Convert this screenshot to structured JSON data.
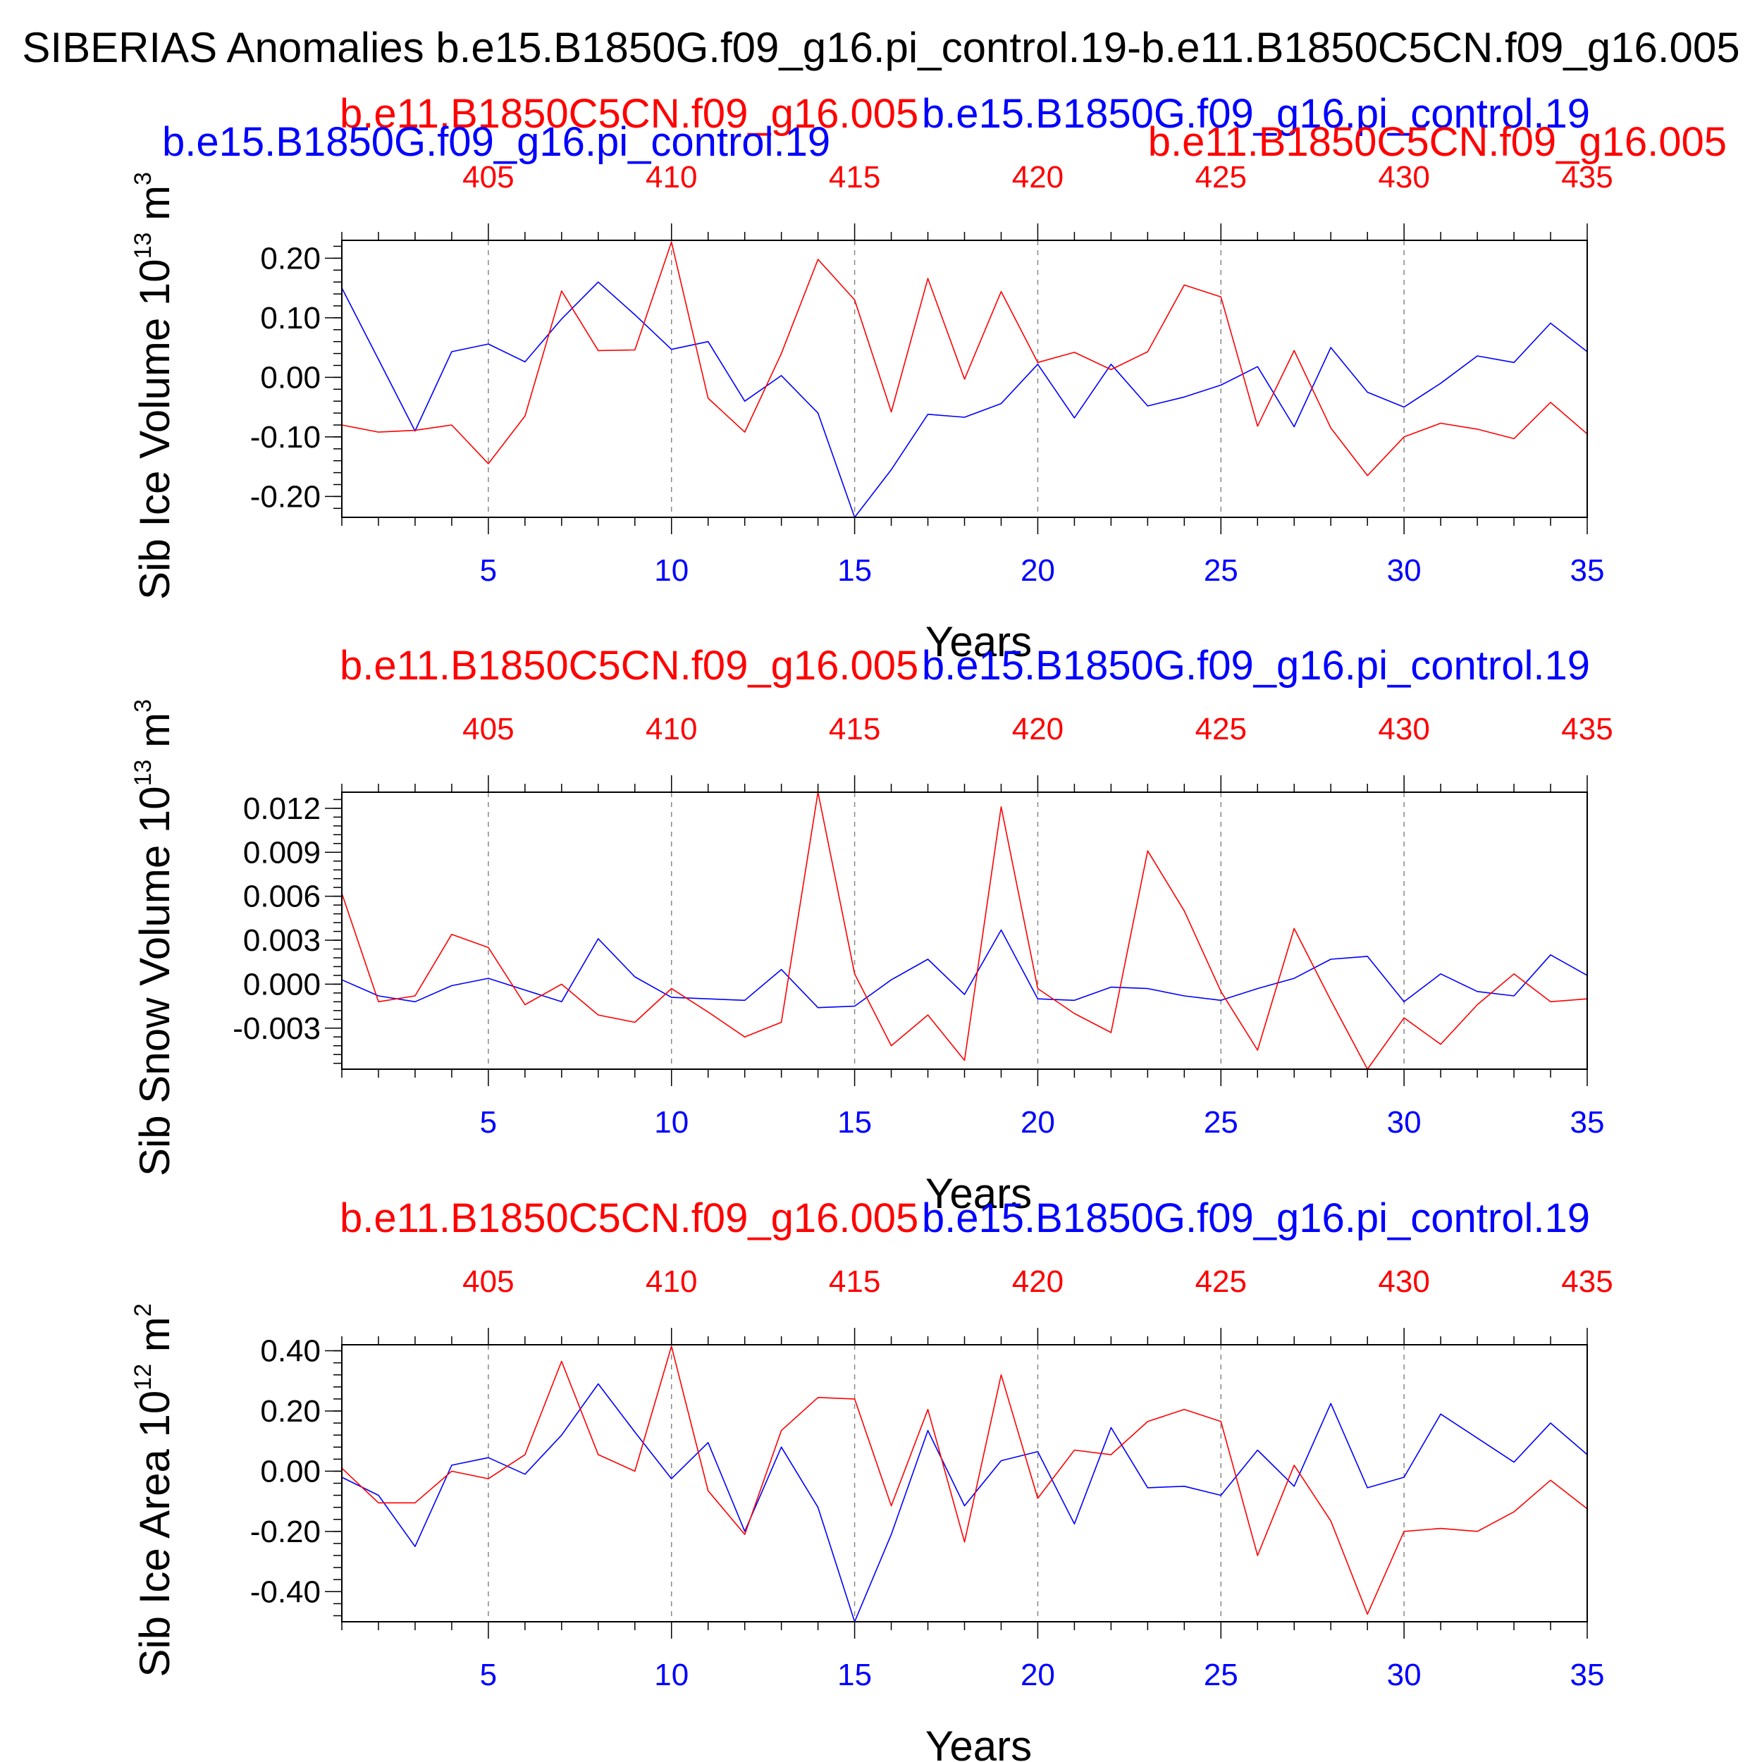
{
  "title": "SIBERIAS Anomalies b.e15.B1850G.f09_g16.pi_control.19-b.e11.B1850C5CN.f09_g16.005",
  "colors": {
    "case1": "#0000ff",
    "case2": "#ff0000",
    "axis": "#000000",
    "grid": "#888888"
  },
  "chart_data": [
    {
      "type": "line",
      "name": "Sib Ice Volume",
      "ylabel_main": "Sib Ice Volume 10",
      "ylabel_exp": "13",
      "ylabel_unit": " m",
      "ylabel_unit_exp": "3",
      "xlabel": "Years",
      "legend_case2": "b.e11.B1850C5CN.f09_g16.005",
      "legend_case1": "b.e15.B1850G.f09_g16.pi_control.19",
      "legend_extra_case1": "b.e15.B1850G.f09_g16.pi_control.19",
      "legend_extra_case2": "b.e11.B1850C5CN.f09_g16.005",
      "xlim": [
        1,
        35
      ],
      "ylim": [
        -0.235,
        0.23
      ],
      "yticks": [
        -0.2,
        -0.1,
        0.0,
        0.1,
        0.2
      ],
      "ytick_labels": [
        "-0.20",
        "-0.10",
        "0.00",
        "0.10",
        "0.20"
      ],
      "yminor_step": 0.02,
      "xticks_bottom": [
        5,
        10,
        15,
        20,
        25,
        30,
        35
      ],
      "xtick_labels_bottom": [
        "5",
        "10",
        "15",
        "20",
        "25",
        "30",
        "35"
      ],
      "xtick_labels_top": [
        "405",
        "410",
        "415",
        "420",
        "425",
        "430",
        "435"
      ],
      "x": [
        1,
        2,
        3,
        4,
        5,
        6,
        7,
        8,
        9,
        10,
        11,
        12,
        13,
        14,
        15,
        16,
        17,
        18,
        19,
        20,
        21,
        22,
        23,
        24,
        25,
        26,
        27,
        28,
        29,
        30,
        31,
        32,
        33,
        34,
        35
      ],
      "series": [
        {
          "name": "b.e15.B1850G.f09_g16.pi_control.19",
          "color": "#0000ff",
          "values": [
            0.15,
            0.03,
            -0.09,
            0.043,
            0.056,
            0.026,
            0.098,
            0.16,
            0.105,
            0.047,
            0.06,
            -0.04,
            0.003,
            -0.06,
            -0.235,
            -0.155,
            -0.062,
            -0.067,
            -0.044,
            0.022,
            -0.068,
            0.022,
            -0.048,
            -0.033,
            -0.013,
            0.018,
            -0.083,
            0.05,
            -0.025,
            -0.05,
            -0.01,
            0.036,
            0.025,
            0.091,
            0.043
          ]
        },
        {
          "name": "b.e11.B1850C5CN.f09_g16.005",
          "color": "#ff0000",
          "values": [
            -0.08,
            -0.092,
            -0.089,
            -0.08,
            -0.145,
            -0.065,
            0.145,
            0.045,
            0.046,
            0.227,
            -0.035,
            -0.092,
            0.04,
            0.198,
            0.13,
            -0.058,
            0.166,
            -0.003,
            0.144,
            0.025,
            0.042,
            0.013,
            0.043,
            0.155,
            0.135,
            -0.082,
            0.045,
            -0.085,
            -0.165,
            -0.1,
            -0.077,
            -0.087,
            -0.103,
            -0.042,
            -0.095
          ]
        }
      ]
    },
    {
      "type": "line",
      "name": "Sib Snow Volume",
      "ylabel_main": "Sib Snow Volume 10",
      "ylabel_exp": "13",
      "ylabel_unit": " m",
      "ylabel_unit_exp": "3",
      "xlabel": "Years",
      "legend_case2": "b.e11.B1850C5CN.f09_g16.005",
      "legend_case1": "b.e15.B1850G.f09_g16.pi_control.19",
      "xlim": [
        1,
        35
      ],
      "ylim": [
        -0.0058,
        0.0131
      ],
      "yticks": [
        -0.003,
        0.0,
        0.003,
        0.006,
        0.009,
        0.012
      ],
      "ytick_labels": [
        "-0.003",
        "0.000",
        "0.003",
        "0.006",
        "0.009",
        "0.012"
      ],
      "yminor_step": 0.0006,
      "xticks_bottom": [
        5,
        10,
        15,
        20,
        25,
        30,
        35
      ],
      "xtick_labels_bottom": [
        "5",
        "10",
        "15",
        "20",
        "25",
        "30",
        "35"
      ],
      "xtick_labels_top": [
        "405",
        "410",
        "415",
        "420",
        "425",
        "430",
        "435"
      ],
      "x": [
        1,
        2,
        3,
        4,
        5,
        6,
        7,
        8,
        9,
        10,
        11,
        12,
        13,
        14,
        15,
        16,
        17,
        18,
        19,
        20,
        21,
        22,
        23,
        24,
        25,
        26,
        27,
        28,
        29,
        30,
        31,
        32,
        33,
        34,
        35
      ],
      "series": [
        {
          "name": "b.e15.B1850G.f09_g16.pi_control.19",
          "color": "#0000ff",
          "values": [
            0.0003,
            -0.0008,
            -0.0012,
            -0.0001,
            0.0004,
            -0.0004,
            -0.0012,
            0.0031,
            0.0005,
            -0.0009,
            -0.001,
            -0.0011,
            0.001,
            -0.0016,
            -0.0015,
            0.0003,
            0.0017,
            -0.0007,
            0.0037,
            -0.001,
            -0.0011,
            -0.0002,
            -0.0003,
            -0.0008,
            -0.0011,
            -0.0003,
            0.0004,
            0.0017,
            0.0019,
            -0.0012,
            0.0007,
            -0.0005,
            -0.0008,
            0.002,
            0.0006
          ]
        },
        {
          "name": "b.e11.B1850C5CN.f09_g16.005",
          "color": "#ff0000",
          "values": [
            0.0062,
            -0.0012,
            -0.0008,
            0.0034,
            0.0025,
            -0.0014,
            0.0,
            -0.0021,
            -0.0026,
            -0.0003,
            -0.0019,
            -0.0036,
            -0.0026,
            0.0131,
            0.0007,
            -0.0042,
            -0.0021,
            -0.0052,
            0.0121,
            -0.0003,
            -0.002,
            -0.0033,
            0.0091,
            0.005,
            -0.0005,
            -0.0045,
            0.0038,
            -0.0011,
            -0.0058,
            -0.0023,
            -0.0041,
            -0.0014,
            0.0007,
            -0.0012,
            -0.001
          ]
        }
      ]
    },
    {
      "type": "line",
      "name": "Sib Ice Area",
      "ylabel_main": "Sib Ice Area 10",
      "ylabel_exp": "12",
      "ylabel_unit": " m",
      "ylabel_unit_exp": "2",
      "xlabel": "Years",
      "legend_case2": "b.e11.B1850C5CN.f09_g16.005",
      "legend_case1": "b.e15.B1850G.f09_g16.pi_control.19",
      "xlim": [
        1,
        35
      ],
      "ylim": [
        -0.5,
        0.42
      ],
      "yticks": [
        -0.4,
        -0.2,
        0.0,
        0.2,
        0.4
      ],
      "ytick_labels": [
        "-0.40",
        "-0.20",
        "0.00",
        "0.20",
        "0.40"
      ],
      "yminor_step": 0.04,
      "xticks_bottom": [
        5,
        10,
        15,
        20,
        25,
        30,
        35
      ],
      "xtick_labels_bottom": [
        "5",
        "10",
        "15",
        "20",
        "25",
        "30",
        "35"
      ],
      "xtick_labels_top": [
        "405",
        "410",
        "415",
        "420",
        "425",
        "430",
        "435"
      ],
      "x": [
        1,
        2,
        3,
        4,
        5,
        6,
        7,
        8,
        9,
        10,
        11,
        12,
        13,
        14,
        15,
        16,
        17,
        18,
        19,
        20,
        21,
        22,
        23,
        24,
        25,
        26,
        27,
        28,
        29,
        30,
        31,
        32,
        33,
        34,
        35
      ],
      "series": [
        {
          "name": "b.e15.B1850G.f09_g16.pi_control.19",
          "color": "#0000ff",
          "values": [
            -0.02,
            -0.08,
            -0.25,
            0.02,
            0.045,
            -0.01,
            0.12,
            0.29,
            0.13,
            -0.025,
            0.095,
            -0.2,
            0.08,
            -0.12,
            -0.5,
            -0.21,
            0.135,
            -0.115,
            0.035,
            0.065,
            -0.175,
            0.145,
            -0.055,
            -0.05,
            -0.08,
            0.07,
            -0.05,
            0.225,
            -0.055,
            -0.02,
            0.19,
            0.11,
            0.03,
            0.16,
            0.055
          ]
        },
        {
          "name": "b.e11.B1850C5CN.f09_g16.005",
          "color": "#ff0000",
          "values": [
            0.01,
            -0.105,
            -0.105,
            0.0,
            -0.025,
            0.055,
            0.365,
            0.055,
            0.0,
            0.415,
            -0.065,
            -0.21,
            0.135,
            0.245,
            0.24,
            -0.115,
            0.205,
            -0.235,
            0.32,
            -0.09,
            0.07,
            0.055,
            0.165,
            0.205,
            0.165,
            -0.28,
            0.02,
            -0.165,
            -0.475,
            -0.2,
            -0.19,
            -0.2,
            -0.135,
            -0.03,
            -0.125
          ]
        }
      ]
    }
  ]
}
